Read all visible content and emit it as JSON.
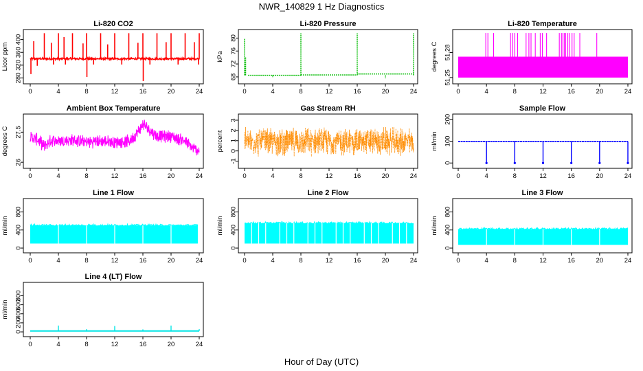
{
  "figure": {
    "title": "NWR_140829  1 Hz Diagnostics",
    "xlabel": "Hour of Day (UTC)"
  },
  "chart_data": [
    {
      "type": "line",
      "title": "Li-820 CO2",
      "ylabel": "Licor ppm",
      "color": "#ff0000",
      "xlim": [
        0,
        24
      ],
      "ylim": [
        268,
        425
      ],
      "x_ticks": [
        "0",
        "4",
        "8",
        "12",
        "16",
        "20",
        "24"
      ],
      "y_ticks": [
        280,
        320,
        360,
        400
      ],
      "signal": {
        "kind": "spiky",
        "baseline": 340,
        "noise": 6,
        "spikes": [
          {
            "x": 0.1,
            "y": 292
          },
          {
            "x": 0.5,
            "y": 395
          },
          {
            "x": 1.0,
            "y": 318
          },
          {
            "x": 2.0,
            "y": 420
          },
          {
            "x": 3.0,
            "y": 390
          },
          {
            "x": 3.3,
            "y": 322
          },
          {
            "x": 4.0,
            "y": 420
          },
          {
            "x": 4.8,
            "y": 408
          },
          {
            "x": 5.0,
            "y": 322
          },
          {
            "x": 6.0,
            "y": 420
          },
          {
            "x": 7.5,
            "y": 388
          },
          {
            "x": 8.0,
            "y": 420
          },
          {
            "x": 8.05,
            "y": 283
          },
          {
            "x": 9.0,
            "y": 322
          },
          {
            "x": 10.0,
            "y": 420
          },
          {
            "x": 11.0,
            "y": 385
          },
          {
            "x": 12.0,
            "y": 420
          },
          {
            "x": 13.0,
            "y": 322
          },
          {
            "x": 14.0,
            "y": 420
          },
          {
            "x": 15.3,
            "y": 390
          },
          {
            "x": 16.0,
            "y": 420
          },
          {
            "x": 16.05,
            "y": 270
          },
          {
            "x": 17.0,
            "y": 322
          },
          {
            "x": 18.0,
            "y": 420
          },
          {
            "x": 19.3,
            "y": 392
          },
          {
            "x": 20.0,
            "y": 420
          },
          {
            "x": 21.0,
            "y": 322
          },
          {
            "x": 22.0,
            "y": 420
          },
          {
            "x": 23.3,
            "y": 392
          },
          {
            "x": 24.0,
            "y": 420
          },
          {
            "x": 23.9,
            "y": 322
          }
        ]
      }
    },
    {
      "type": "line",
      "title": "Li-820 Pressure",
      "ylabel": "kPa",
      "color": "#00bb00",
      "xlim": [
        0,
        24
      ],
      "ylim": [
        66.5,
        82
      ],
      "x_ticks": [
        "0",
        "4",
        "8",
        "12",
        "16",
        "20",
        "24"
      ],
      "y_ticks": [
        68,
        72,
        76,
        80
      ],
      "signal": {
        "kind": "steps",
        "segments": [
          {
            "x0": 0.5,
            "x1": 8.0,
            "y": 68.5
          },
          {
            "x0": 8.0,
            "x1": 16.0,
            "y": 68.6
          },
          {
            "x0": 16.0,
            "x1": 24.0,
            "y": 68.9
          }
        ],
        "spikes": [
          {
            "x": 0.0,
            "y": 79.8
          },
          {
            "x": 0.15,
            "y": 74
          },
          {
            "x": 8.0,
            "y": 81.5
          },
          {
            "x": 16.0,
            "y": 81.5
          },
          {
            "x": 24.0,
            "y": 81.5
          },
          {
            "x": 4.0,
            "y": 67.8
          },
          {
            "x": 20.0,
            "y": 67.6
          }
        ]
      }
    },
    {
      "type": "area",
      "title": "Li-820 Temperature",
      "ylabel": "degrees C",
      "color": "#ff00ff",
      "xlim": [
        0,
        24
      ],
      "ylim": [
        51.245,
        51.305
      ],
      "x_ticks": [
        "0",
        "4",
        "8",
        "12",
        "16",
        "20",
        "24"
      ],
      "y_ticks": [
        51.25,
        51.28
      ],
      "signal": {
        "kind": "block",
        "low": 51.25,
        "high": 51.275,
        "peak": 51.3,
        "x0": 0.0,
        "x1": 24.0,
        "peaks": [
          3.9,
          4.2,
          5.0,
          7.4,
          7.7,
          8.0,
          8.4,
          9.6,
          10.0,
          10.3,
          10.9,
          11.6,
          11.9,
          12.5,
          14.3,
          14.6,
          14.8,
          15.0,
          15.2,
          15.5,
          15.7,
          16.1,
          16.4,
          17.2,
          19.6
        ]
      }
    },
    {
      "type": "line",
      "title": "Ambient Box Temperature",
      "ylabel": "degrees C",
      "color": "#ff00ff",
      "xlim": [
        0,
        24
      ],
      "ylim": [
        25.8,
        28.3
      ],
      "x_ticks": [
        "0",
        "4",
        "8",
        "12",
        "16",
        "20",
        "24"
      ],
      "y_ticks": [
        26.0,
        27.5
      ],
      "signal": {
        "kind": "band",
        "center": [
          [
            0,
            27.25
          ],
          [
            1,
            27.15
          ],
          [
            2,
            26.8
          ],
          [
            3,
            27.1
          ],
          [
            4,
            27.05
          ],
          [
            6,
            27.1
          ],
          [
            8,
            27.0
          ],
          [
            10,
            27.05
          ],
          [
            12,
            27.0
          ],
          [
            14,
            27.05
          ],
          [
            15,
            27.35
          ],
          [
            16,
            27.9
          ],
          [
            17,
            27.6
          ],
          [
            18,
            27.3
          ],
          [
            20,
            27.3
          ],
          [
            22,
            27.05
          ],
          [
            23,
            26.7
          ],
          [
            24,
            26.6
          ]
        ],
        "halfwidth": 0.35
      }
    },
    {
      "type": "scatter",
      "title": "Gas Stream RH",
      "ylabel": "percent",
      "color": "#ff8c00",
      "xlim": [
        0,
        24
      ],
      "ylim": [
        -1.5,
        3.4
      ],
      "x_ticks": [
        "0",
        "4",
        "8",
        "12",
        "16",
        "20",
        "24"
      ],
      "y_ticks": [
        -1,
        0,
        1,
        2,
        3
      ],
      "signal": {
        "kind": "noise",
        "center": 0.9,
        "halfwidth": 1.55
      }
    },
    {
      "type": "line",
      "title": "Sample Flow",
      "ylabel": "ml/min",
      "color": "#0000ff",
      "xlim": [
        0,
        24
      ],
      "ylim": [
        -15,
        215
      ],
      "x_ticks": [
        "0",
        "4",
        "8",
        "12",
        "16",
        "20",
        "24"
      ],
      "y_ticks": [
        0,
        100,
        200
      ],
      "signal": {
        "kind": "dips",
        "baseline": 99,
        "dips": [
          4,
          8,
          12,
          16,
          20,
          24
        ],
        "dip_y": 0
      }
    },
    {
      "type": "area",
      "title": "Line 1 Flow",
      "ylabel": "ml/min",
      "color": "#00ffff",
      "xlim": [
        0,
        24
      ],
      "ylim": [
        -60,
        1050
      ],
      "x_ticks": [
        "0",
        "4",
        "8",
        "12",
        "16",
        "20",
        "24"
      ],
      "y_ticks": [
        0,
        400,
        800
      ],
      "signal": {
        "kind": "flowband",
        "low": 100,
        "high": 500,
        "x0": 0.0,
        "x1": 23.8,
        "gaps": [
          4,
          8,
          12,
          16,
          20
        ]
      }
    },
    {
      "type": "area",
      "title": "Line 2 Flow",
      "ylabel": "ml/min",
      "color": "#00ffff",
      "xlim": [
        0,
        24
      ],
      "ylim": [
        -60,
        1050
      ],
      "x_ticks": [
        "0",
        "4",
        "8",
        "12",
        "16",
        "20",
        "24"
      ],
      "y_ticks": [
        0,
        400,
        800
      ],
      "signal": {
        "kind": "flowband",
        "low": 100,
        "high": 550,
        "x0": 0.0,
        "x1": 24.0,
        "gaps": [
          1.0,
          2.0,
          3.0,
          5.0,
          6.0,
          7.0,
          9.0,
          10.0,
          11.0,
          13.0,
          14.0,
          15.0,
          17.0,
          18.0,
          19.0,
          21.0,
          22.0,
          23.0
        ]
      }
    },
    {
      "type": "area",
      "title": "Line 3 Flow",
      "ylabel": "ml/min",
      "color": "#00ffff",
      "xlim": [
        0,
        24
      ],
      "ylim": [
        -60,
        1050
      ],
      "x_ticks": [
        "0",
        "4",
        "8",
        "12",
        "16",
        "20",
        "24"
      ],
      "y_ticks": [
        0,
        400,
        800
      ],
      "signal": {
        "kind": "flowband",
        "low": 70,
        "high": 420,
        "x0": 0.0,
        "x1": 24.0,
        "gaps": [
          4,
          8,
          12,
          16,
          20
        ]
      }
    },
    {
      "type": "line",
      "title": "Line 4 (LT) Flow",
      "ylabel": "ml/min",
      "color": "#00e5e5",
      "xlim": [
        0,
        24
      ],
      "ylim": [
        -60,
        1050
      ],
      "x_ticks": [
        "0",
        "4",
        "8",
        "12",
        "16",
        "20",
        "24"
      ],
      "y_ticks": [
        0,
        200,
        400,
        600,
        800
      ],
      "signal": {
        "kind": "flat",
        "baseline": 20,
        "spikes": [
          {
            "x": 4,
            "y": 140
          },
          {
            "x": 8,
            "y": 60
          },
          {
            "x": 12,
            "y": 130
          },
          {
            "x": 16,
            "y": 55
          },
          {
            "x": 20,
            "y": 140
          },
          {
            "x": 24,
            "y": 60
          }
        ]
      }
    }
  ]
}
